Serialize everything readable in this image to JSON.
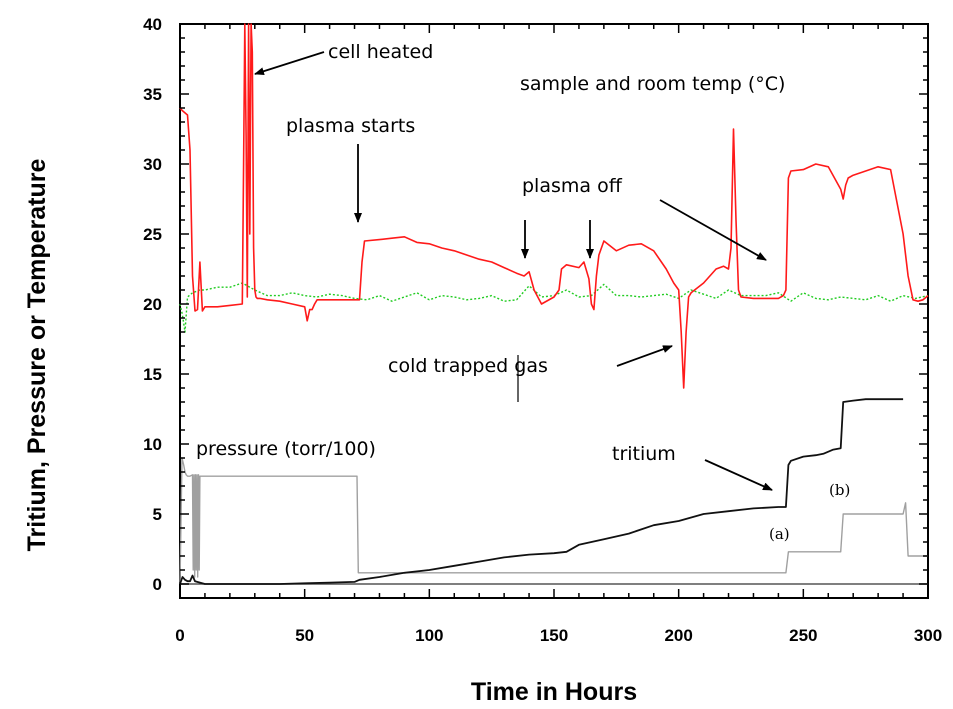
{
  "chart_data": {
    "type": "line",
    "title": "",
    "xlabel": "Time in Hours",
    "ylabel": "Tritium, Pressure or Temperature",
    "xlim": [
      0,
      300
    ],
    "ylim": [
      -1,
      40
    ],
    "xticks": [
      "0",
      "50",
      "100",
      "150",
      "200",
      "250",
      "300"
    ],
    "yticks": [
      "0",
      "5",
      "10",
      "15",
      "20",
      "25",
      "30",
      "35",
      "40"
    ],
    "grid": false,
    "colors": {
      "temperature": "#ff1a1a",
      "room_temp": "#22cc22",
      "tritium": "#111111",
      "pressure": "#a0a0a0",
      "baseline": "#555555"
    },
    "annotations": {
      "cell_heated": "cell heated",
      "sample_room_temp": "sample and room temp (°C)",
      "plasma_starts": "plasma starts",
      "plasma_off": "plasma off",
      "cold_trapped_gas": "cold trapped gas",
      "pressure": "pressure (torr/100)",
      "tritium": "tritium",
      "a": "(a)",
      "b": "(b)"
    },
    "series": [
      {
        "key": "temperature",
        "x": [
          0,
          1,
          3,
          4,
          5,
          6,
          7,
          8,
          9,
          10,
          15,
          20,
          25,
          25.5,
          26,
          26.5,
          27,
          27.5,
          28,
          28.5,
          29,
          29.5,
          30,
          30.5,
          31,
          32,
          35,
          40,
          45,
          50,
          51,
          52,
          53,
          54,
          55,
          60,
          65,
          70,
          72,
          73,
          74,
          80,
          85,
          90,
          95,
          100,
          105,
          110,
          115,
          120,
          125,
          130,
          135,
          138,
          140,
          142,
          145,
          150,
          152,
          153,
          155,
          160,
          162,
          164,
          165,
          166,
          167,
          168,
          170,
          175,
          180,
          185,
          190,
          195,
          198,
          200,
          201,
          202,
          203,
          204,
          205,
          210,
          215,
          218,
          220,
          221,
          222,
          223,
          224,
          225,
          230,
          235,
          240,
          242,
          243,
          244,
          245,
          250,
          255,
          260,
          265,
          266,
          267,
          268,
          270,
          275,
          280,
          285,
          290,
          292,
          294,
          296,
          298,
          300
        ],
        "y": [
          34,
          33.8,
          33.5,
          31,
          22,
          19.5,
          19.6,
          23,
          19.5,
          19.8,
          19.8,
          19.9,
          20,
          30,
          40,
          32,
          20.5,
          40,
          25,
          40,
          38,
          24,
          21,
          20.5,
          20.4,
          20.4,
          20.3,
          20.2,
          20,
          19.8,
          18.8,
          19.6,
          19.6,
          20,
          20.3,
          20.3,
          20.3,
          20.3,
          20.3,
          23,
          24.5,
          24.6,
          24.7,
          24.8,
          24.4,
          24.3,
          24,
          23.8,
          23.5,
          23.2,
          23,
          22.6,
          22.2,
          22,
          22.3,
          21,
          20,
          20.5,
          21,
          22.5,
          22.8,
          22.6,
          23,
          21.8,
          20,
          19.6,
          22,
          23.5,
          24.5,
          23.8,
          24.2,
          24.3,
          23.8,
          22.5,
          21.5,
          21,
          18,
          14,
          18,
          20.5,
          20.8,
          21.5,
          22.5,
          22.7,
          22.5,
          24,
          32.5,
          26,
          21,
          20.5,
          20.4,
          20.4,
          20.4,
          20.6,
          21,
          29,
          29.5,
          29.6,
          30,
          29.8,
          28.2,
          27.5,
          28.5,
          29,
          29.2,
          29.5,
          29.8,
          29.6,
          25,
          22,
          20.3,
          20.2,
          20.3,
          20.6
        ]
      },
      {
        "key": "room_temp",
        "x": [
          0,
          1,
          2,
          3,
          5,
          8,
          10,
          15,
          20,
          25,
          30,
          35,
          40,
          45,
          50,
          55,
          60,
          65,
          70,
          75,
          80,
          85,
          90,
          95,
          100,
          105,
          110,
          115,
          120,
          125,
          130,
          135,
          140,
          145,
          150,
          155,
          160,
          165,
          170,
          175,
          180,
          185,
          190,
          195,
          200,
          205,
          210,
          215,
          220,
          225,
          230,
          235,
          240,
          245,
          250,
          255,
          260,
          265,
          270,
          275,
          280,
          285,
          290,
          295,
          300
        ],
        "y": [
          20,
          19.2,
          18,
          20.5,
          20.8,
          21,
          21,
          21.2,
          21.2,
          21.5,
          21,
          20.6,
          20.6,
          20.8,
          20.6,
          20.5,
          20.7,
          20.6,
          20.4,
          20.3,
          20.6,
          20.2,
          20.5,
          20.8,
          20.3,
          20.6,
          20.5,
          20.3,
          20.4,
          20.6,
          20.2,
          20.3,
          21.3,
          20.5,
          20.6,
          21,
          20.5,
          20.6,
          21.4,
          20.6,
          20.6,
          20.5,
          20.6,
          20.7,
          20.4,
          21,
          20.7,
          20.4,
          21,
          20.6,
          20.6,
          20.6,
          20.8,
          20.2,
          20.8,
          20.4,
          20.3,
          20.5,
          20.4,
          20.3,
          20.6,
          20.2,
          20.6,
          20.4,
          20.6
        ]
      },
      {
        "key": "tritium",
        "x": [
          0,
          1,
          2,
          3,
          4,
          5,
          6,
          8,
          10,
          20,
          30,
          40,
          50,
          60,
          70,
          72,
          80,
          90,
          100,
          110,
          120,
          130,
          140,
          150,
          155,
          160,
          170,
          180,
          190,
          200,
          210,
          220,
          230,
          240,
          243,
          244,
          245,
          250,
          255,
          258,
          262,
          265,
          266,
          270,
          275,
          280,
          285,
          290
        ],
        "y": [
          0,
          0.5,
          0.3,
          0.2,
          0.2,
          0.6,
          0.2,
          0.1,
          0,
          0,
          0,
          0,
          0.05,
          0.1,
          0.15,
          0.3,
          0.5,
          0.8,
          1,
          1.3,
          1.6,
          1.9,
          2.1,
          2.2,
          2.3,
          2.8,
          3.2,
          3.6,
          4.2,
          4.5,
          5,
          5.2,
          5.4,
          5.5,
          5.5,
          8.5,
          8.8,
          9.1,
          9.2,
          9.3,
          9.6,
          9.7,
          13,
          13.1,
          13.2,
          13.2,
          13.2,
          13.2
        ]
      },
      {
        "key": "pressure",
        "x": [
          0,
          0.8,
          1.5,
          2,
          2.5,
          3,
          4,
          5,
          5.3,
          5.6,
          5.9,
          6.2,
          6.5,
          6.8,
          7.1,
          7.4,
          7.7,
          8,
          9,
          10,
          71,
          71.5,
          72,
          100,
          150,
          200,
          243,
          244,
          265,
          266,
          290,
          291,
          292,
          300
        ],
        "y": [
          0,
          9,
          8.5,
          8,
          7.8,
          7.7,
          7.7,
          7.8,
          1,
          7.8,
          0.5,
          7.8,
          1,
          7.8,
          0.5,
          7.8,
          1,
          7.7,
          7.7,
          7.7,
          7.7,
          0.8,
          0.8,
          0.8,
          0.8,
          0.8,
          0.8,
          2.3,
          2.3,
          5,
          5,
          5.8,
          2,
          2
        ]
      }
    ]
  }
}
